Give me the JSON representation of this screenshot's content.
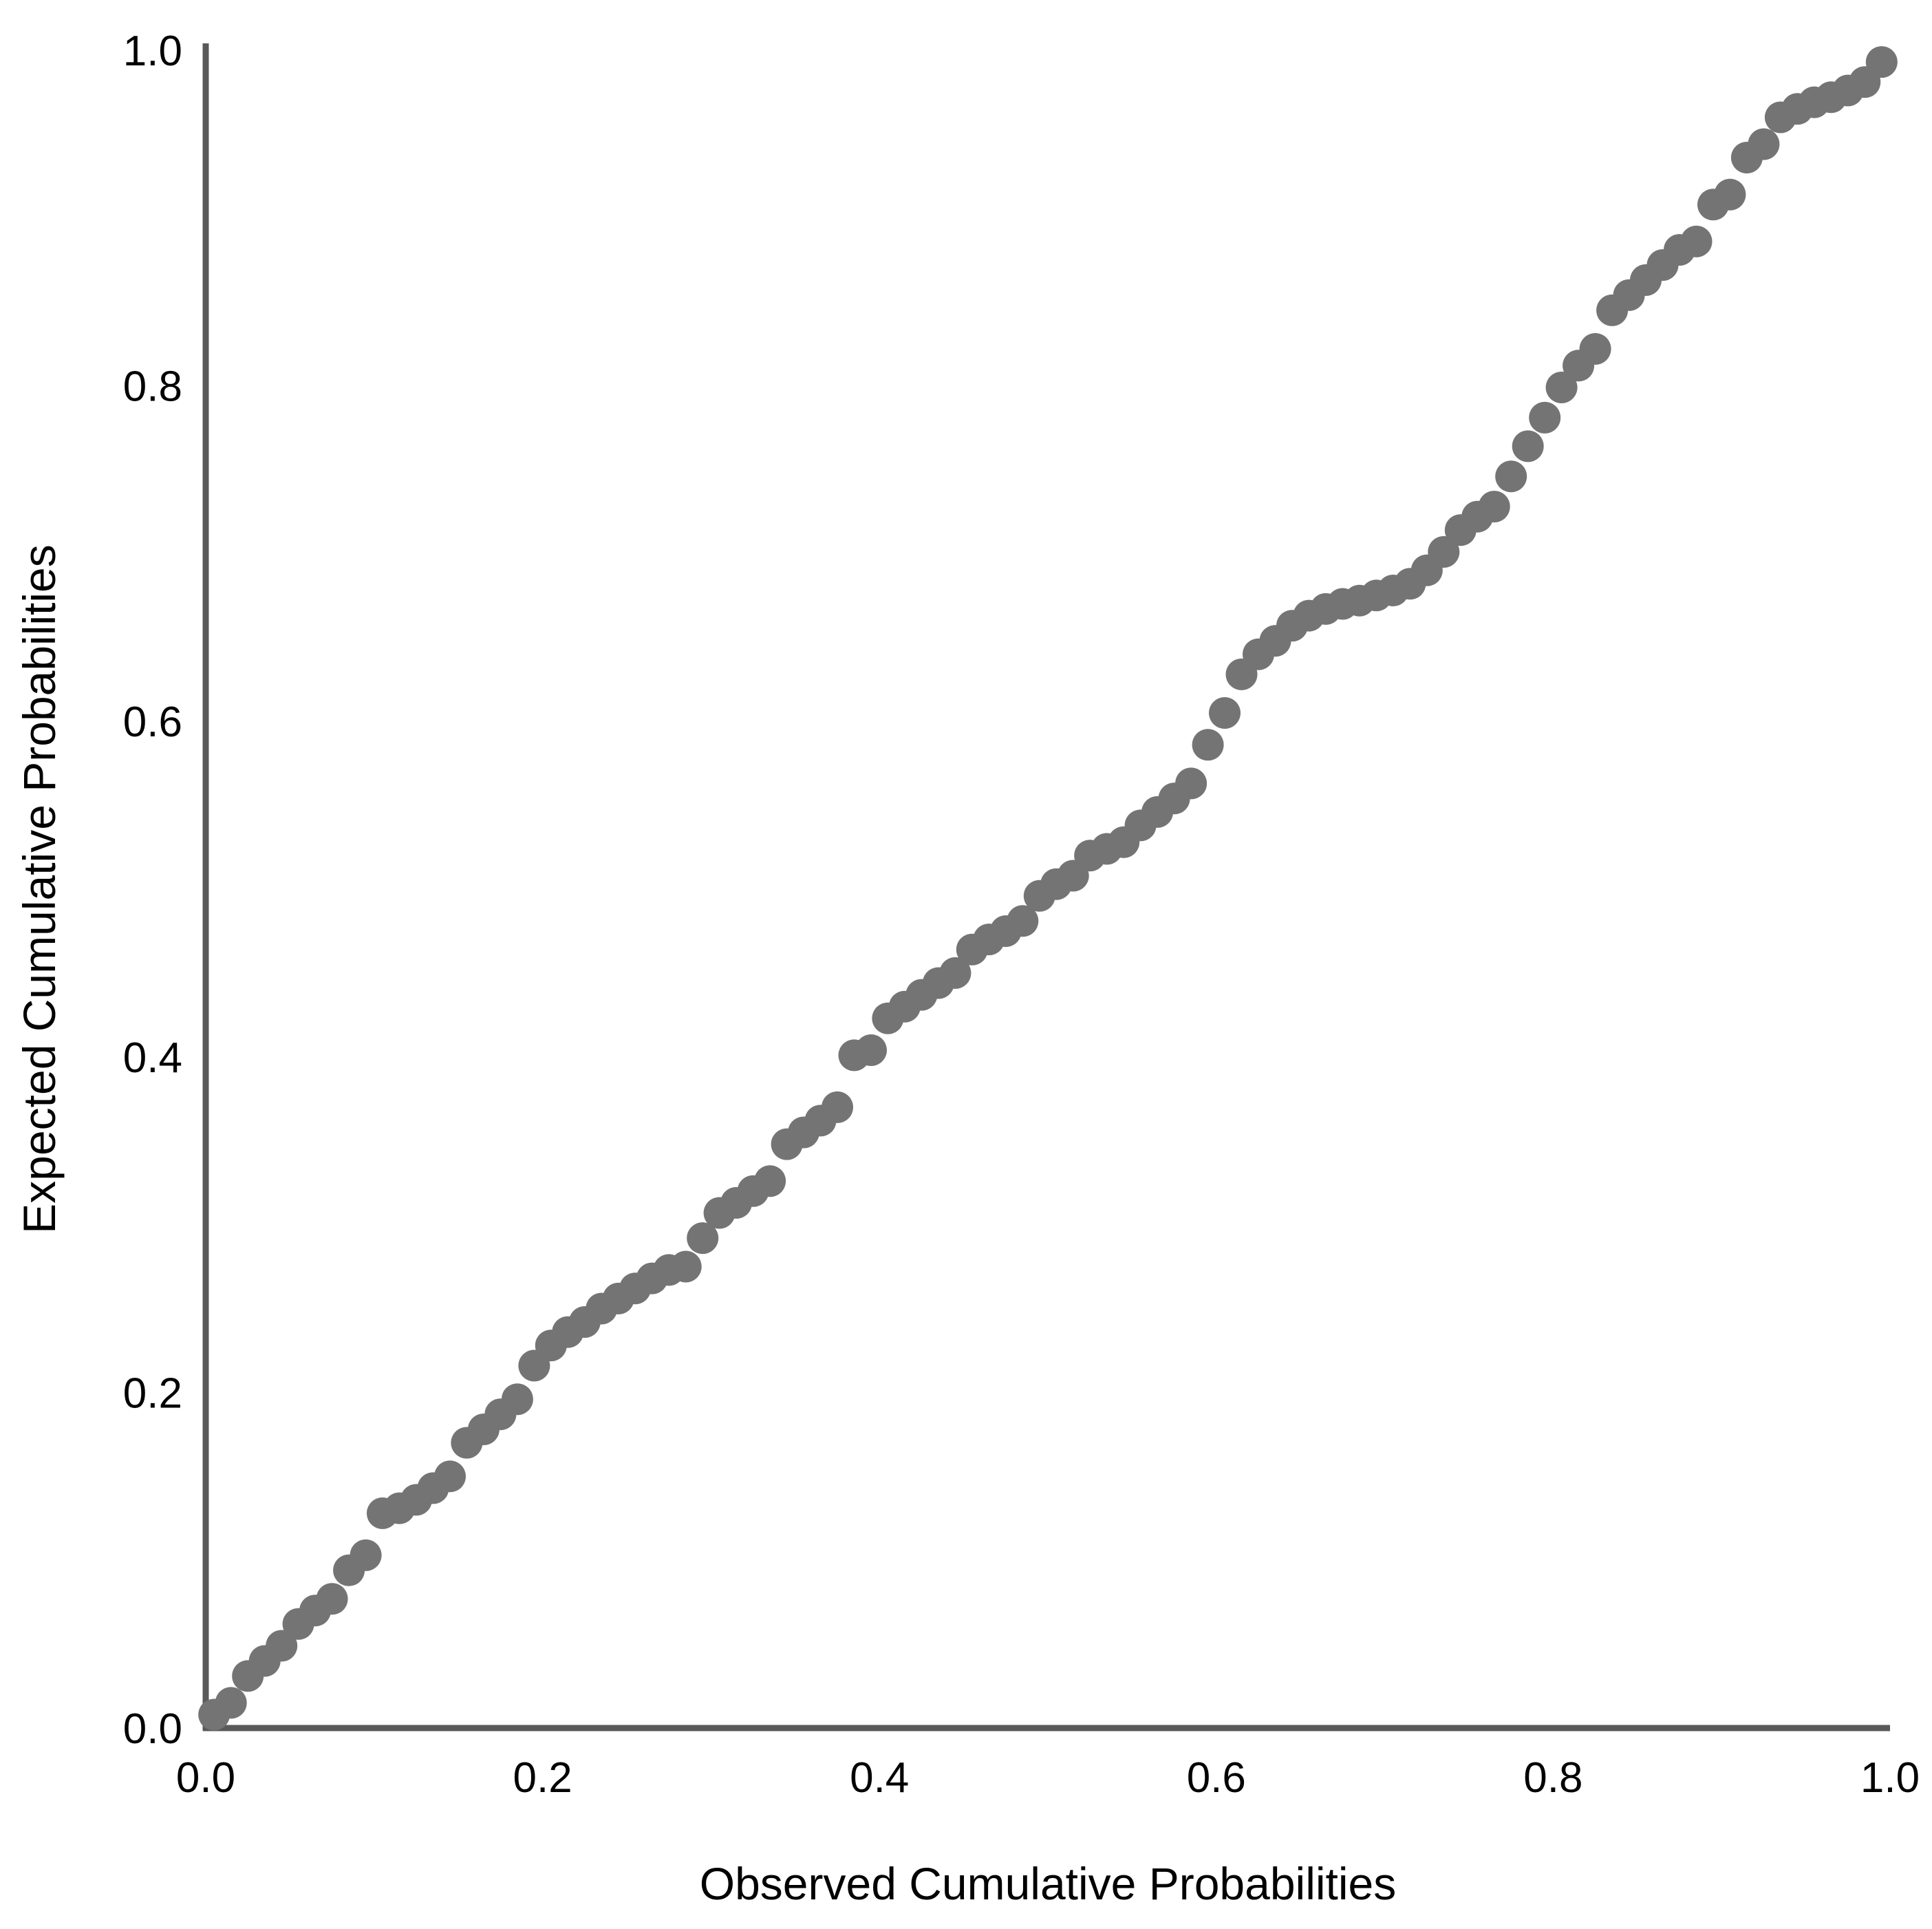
{
  "chart_data": {
    "type": "scatter",
    "title": "",
    "xlabel": "Observed Cumulative Probabilities",
    "ylabel": "Expected Cumulative Probabilities",
    "xlim": [
      0.0,
      1.0
    ],
    "ylim": [
      0.0,
      1.0
    ],
    "x_ticks": [
      "0.0",
      "0.2",
      "0.4",
      "0.6",
      "0.8",
      "1.0"
    ],
    "y_ticks": [
      "0.0",
      "0.2",
      "0.4",
      "0.6",
      "0.8",
      "1.0"
    ],
    "grid": false,
    "legend": null,
    "marker_color": "#747474",
    "axis_color": "#595959",
    "tick_label_color": "#000000",
    "points": [
      [
        0.005,
        0.008
      ],
      [
        0.015,
        0.015
      ],
      [
        0.025,
        0.031
      ],
      [
        0.035,
        0.04
      ],
      [
        0.045,
        0.049
      ],
      [
        0.055,
        0.062
      ],
      [
        0.065,
        0.07
      ],
      [
        0.075,
        0.077
      ],
      [
        0.085,
        0.094
      ],
      [
        0.095,
        0.103
      ],
      [
        0.105,
        0.128
      ],
      [
        0.115,
        0.131
      ],
      [
        0.125,
        0.136
      ],
      [
        0.135,
        0.143
      ],
      [
        0.145,
        0.15
      ],
      [
        0.155,
        0.17
      ],
      [
        0.165,
        0.178
      ],
      [
        0.175,
        0.187
      ],
      [
        0.185,
        0.196
      ],
      [
        0.195,
        0.216
      ],
      [
        0.205,
        0.228
      ],
      [
        0.215,
        0.236
      ],
      [
        0.225,
        0.242
      ],
      [
        0.235,
        0.25
      ],
      [
        0.245,
        0.256
      ],
      [
        0.255,
        0.262
      ],
      [
        0.265,
        0.268
      ],
      [
        0.275,
        0.273
      ],
      [
        0.285,
        0.275
      ],
      [
        0.295,
        0.292
      ],
      [
        0.305,
        0.307
      ],
      [
        0.315,
        0.313
      ],
      [
        0.325,
        0.32
      ],
      [
        0.335,
        0.326
      ],
      [
        0.345,
        0.348
      ],
      [
        0.355,
        0.355
      ],
      [
        0.365,
        0.362
      ],
      [
        0.375,
        0.37
      ],
      [
        0.385,
        0.401
      ],
      [
        0.395,
        0.404
      ],
      [
        0.405,
        0.423
      ],
      [
        0.415,
        0.43
      ],
      [
        0.425,
        0.437
      ],
      [
        0.435,
        0.444
      ],
      [
        0.445,
        0.45
      ],
      [
        0.455,
        0.464
      ],
      [
        0.465,
        0.47
      ],
      [
        0.475,
        0.475
      ],
      [
        0.485,
        0.481
      ],
      [
        0.495,
        0.496
      ],
      [
        0.505,
        0.503
      ],
      [
        0.515,
        0.508
      ],
      [
        0.525,
        0.52
      ],
      [
        0.535,
        0.524
      ],
      [
        0.545,
        0.528
      ],
      [
        0.555,
        0.538
      ],
      [
        0.565,
        0.546
      ],
      [
        0.575,
        0.554
      ],
      [
        0.585,
        0.563
      ],
      [
        0.595,
        0.586
      ],
      [
        0.605,
        0.605
      ],
      [
        0.615,
        0.628
      ],
      [
        0.625,
        0.64
      ],
      [
        0.635,
        0.648
      ],
      [
        0.645,
        0.657
      ],
      [
        0.655,
        0.663
      ],
      [
        0.665,
        0.667
      ],
      [
        0.675,
        0.67
      ],
      [
        0.685,
        0.672
      ],
      [
        0.695,
        0.675
      ],
      [
        0.705,
        0.678
      ],
      [
        0.715,
        0.682
      ],
      [
        0.725,
        0.69
      ],
      [
        0.735,
        0.701
      ],
      [
        0.745,
        0.714
      ],
      [
        0.755,
        0.722
      ],
      [
        0.765,
        0.728
      ],
      [
        0.775,
        0.746
      ],
      [
        0.785,
        0.764
      ],
      [
        0.795,
        0.781
      ],
      [
        0.805,
        0.799
      ],
      [
        0.815,
        0.812
      ],
      [
        0.825,
        0.822
      ],
      [
        0.835,
        0.845
      ],
      [
        0.845,
        0.854
      ],
      [
        0.855,
        0.863
      ],
      [
        0.865,
        0.872
      ],
      [
        0.875,
        0.881
      ],
      [
        0.885,
        0.886
      ],
      [
        0.895,
        0.908
      ],
      [
        0.905,
        0.914
      ],
      [
        0.915,
        0.936
      ],
      [
        0.925,
        0.944
      ],
      [
        0.935,
        0.96
      ],
      [
        0.945,
        0.965
      ],
      [
        0.955,
        0.969
      ],
      [
        0.965,
        0.972
      ],
      [
        0.975,
        0.976
      ],
      [
        0.985,
        0.981
      ],
      [
        0.995,
        0.993
      ]
    ]
  }
}
